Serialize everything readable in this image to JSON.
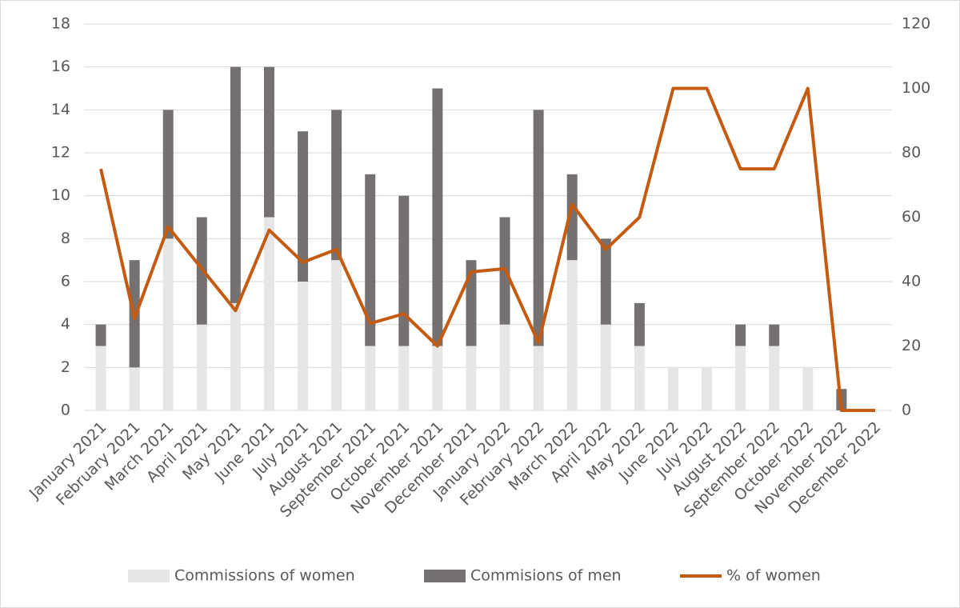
{
  "chart_data": {
    "type": "bar",
    "stacked": true,
    "grid": true,
    "legend": "bottom",
    "categories": [
      "January 2021",
      "February 2021",
      "March 2021",
      "April 2021",
      "May 2021",
      "June 2021",
      "July 2021",
      "August 2021",
      "September 2021",
      "October 2021",
      "November 2021",
      "December 2021",
      "January 2022",
      "February 2022",
      "March 2022",
      "April 2022",
      "May 2022",
      "June 2022",
      "July 2022",
      "August 2022",
      "September 2022",
      "October 2022",
      "November 2022",
      "December 2022"
    ],
    "series": [
      {
        "name": "Commissions of women",
        "type": "bar",
        "color": "#e7e6e6",
        "values": [
          3,
          2,
          8,
          4,
          5,
          9,
          6,
          7,
          3,
          3,
          3,
          3,
          4,
          3,
          7,
          4,
          3,
          2,
          2,
          3,
          3,
          2,
          0,
          0
        ]
      },
      {
        "name": "Commisions of men",
        "type": "bar",
        "color": "#767171",
        "values": [
          1,
          5,
          6,
          5,
          11,
          7,
          7,
          7,
          8,
          7,
          12,
          4,
          5,
          11,
          4,
          4,
          2,
          0,
          0,
          1,
          1,
          0,
          1,
          0
        ]
      },
      {
        "name": "% of women",
        "type": "line",
        "axis": "y2",
        "color": "#c55a11",
        "values": [
          75,
          28.6,
          57,
          44,
          31,
          56,
          46,
          50,
          27,
          30,
          20,
          43,
          44,
          21,
          64,
          50,
          60,
          100,
          100,
          75,
          75,
          100,
          0,
          0
        ]
      }
    ],
    "ylim": [
      0,
      18
    ],
    "yticks": [
      0,
      2,
      4,
      6,
      8,
      10,
      12,
      14,
      16,
      18
    ],
    "y2lim": [
      0,
      120
    ],
    "y2ticks": [
      0,
      20,
      40,
      60,
      80,
      100,
      120
    ]
  }
}
